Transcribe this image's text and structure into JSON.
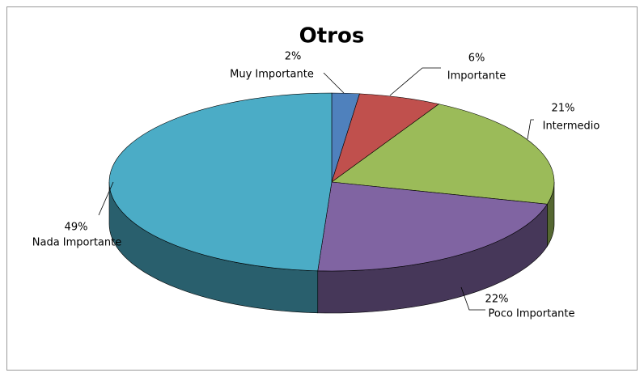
{
  "chart_data": {
    "type": "pie3d",
    "title": "Otros",
    "categories": [
      "Muy Importante",
      "Importante",
      "Intermedio",
      "Poco Importante",
      "Nada Importante"
    ],
    "values": [
      2,
      6,
      21,
      22,
      49
    ],
    "value_labels": [
      "2%",
      "6%",
      "21%",
      "22%",
      "49%"
    ],
    "colors": [
      "#4f81bd",
      "#c0504d",
      "#9bbb59",
      "#8064a2",
      "#4bacc6"
    ]
  }
}
